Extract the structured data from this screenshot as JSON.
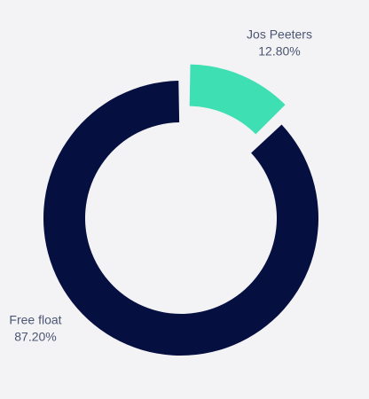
{
  "chart_data": {
    "type": "donut",
    "categories": [
      "Jos Peeters",
      "Free float"
    ],
    "values": [
      12.8,
      87.2
    ],
    "value_labels": [
      "12.80%",
      "87.20%"
    ],
    "colors": [
      "#3ddfb3",
      "#050f40"
    ],
    "exploded": [
      true,
      false
    ]
  }
}
